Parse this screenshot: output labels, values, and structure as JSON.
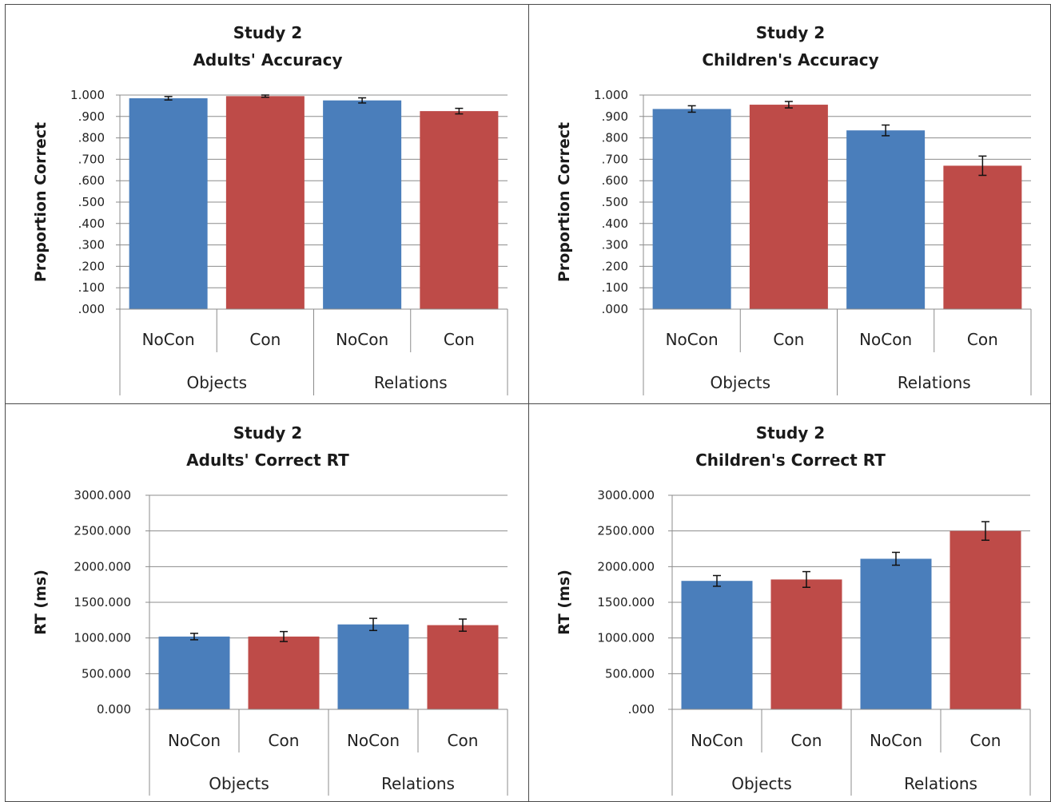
{
  "colors": {
    "blue": "#4a7ebb",
    "red": "#be4b48",
    "grid": "#8c8c8c",
    "axis": "#8c8c8c"
  },
  "chart_data": [
    {
      "type": "bar",
      "title": "Study 2",
      "subtitle": "Adults' Accuracy",
      "ylabel": "Proportion Correct",
      "xlabel": "",
      "ylim": [
        0,
        1
      ],
      "ytick_labels": [
        "1.000",
        ".900",
        ".800",
        ".700",
        ".600",
        ".500",
        ".400",
        ".300",
        ".200",
        ".100",
        ".000"
      ],
      "ytick_values": [
        1,
        0.9,
        0.8,
        0.7,
        0.6,
        0.5,
        0.4,
        0.3,
        0.2,
        0.1,
        0
      ],
      "categories": [
        "NoCon",
        "Con",
        "NoCon",
        "Con"
      ],
      "groups": [
        {
          "label": "Objects",
          "span": 2
        },
        {
          "label": "Relations",
          "span": 2
        }
      ],
      "values": [
        0.985,
        0.995,
        0.975,
        0.925
      ],
      "errors": [
        0.008,
        0.005,
        0.012,
        0.013
      ],
      "bar_colors": [
        "blue",
        "red",
        "blue",
        "red"
      ],
      "grid": true,
      "legend": "none"
    },
    {
      "type": "bar",
      "title": "Study 2",
      "subtitle": "Children's Accuracy",
      "ylabel": "Proportion Correct",
      "xlabel": "",
      "ylim": [
        0,
        1
      ],
      "ytick_labels": [
        "1.000",
        ".900",
        ".800",
        ".700",
        ".600",
        ".500",
        ".400",
        ".300",
        ".200",
        ".100",
        ".000"
      ],
      "ytick_values": [
        1,
        0.9,
        0.8,
        0.7,
        0.6,
        0.5,
        0.4,
        0.3,
        0.2,
        0.1,
        0
      ],
      "categories": [
        "NoCon",
        "Con",
        "NoCon",
        "Con"
      ],
      "groups": [
        {
          "label": "Objects",
          "span": 2
        },
        {
          "label": "Relations",
          "span": 2
        }
      ],
      "values": [
        0.935,
        0.955,
        0.835,
        0.67
      ],
      "errors": [
        0.015,
        0.015,
        0.025,
        0.045
      ],
      "bar_colors": [
        "blue",
        "red",
        "blue",
        "red"
      ],
      "grid": true,
      "legend": "none"
    },
    {
      "type": "bar",
      "title": "Study 2",
      "subtitle": "Adults' Correct RT",
      "ylabel": "RT (ms)",
      "xlabel": "",
      "ylim": [
        0,
        3000
      ],
      "ytick_labels": [
        "3000.000",
        "2500.000",
        "2000.000",
        "1500.000",
        "1000.000",
        "500.000",
        "0.000"
      ],
      "ytick_values": [
        3000,
        2500,
        2000,
        1500,
        1000,
        500,
        0
      ],
      "categories": [
        "NoCon",
        "Con",
        "NoCon",
        "Con"
      ],
      "groups": [
        {
          "label": "Objects",
          "span": 2
        },
        {
          "label": "Relations",
          "span": 2
        }
      ],
      "values": [
        1020,
        1020,
        1190,
        1180
      ],
      "errors": [
        45,
        70,
        85,
        85
      ],
      "bar_colors": [
        "blue",
        "red",
        "blue",
        "red"
      ],
      "grid": true,
      "legend": "none"
    },
    {
      "type": "bar",
      "title": "Study 2",
      "subtitle": "Children's Correct RT",
      "ylabel": "RT (ms)",
      "xlabel": "",
      "ylim": [
        0,
        3000
      ],
      "ytick_labels": [
        "3000.000",
        "2500.000",
        "2000.000",
        "1500.000",
        "1000.000",
        "500.000",
        ".000"
      ],
      "ytick_values": [
        3000,
        2500,
        2000,
        1500,
        1000,
        500,
        0
      ],
      "categories": [
        "NoCon",
        "Con",
        "NoCon",
        "Con"
      ],
      "groups": [
        {
          "label": "Objects",
          "span": 2
        },
        {
          "label": "Relations",
          "span": 2
        }
      ],
      "values": [
        1800,
        1820,
        2110,
        2500
      ],
      "errors": [
        75,
        110,
        90,
        130
      ],
      "bar_colors": [
        "blue",
        "red",
        "blue",
        "red"
      ],
      "grid": true,
      "legend": "none"
    }
  ]
}
